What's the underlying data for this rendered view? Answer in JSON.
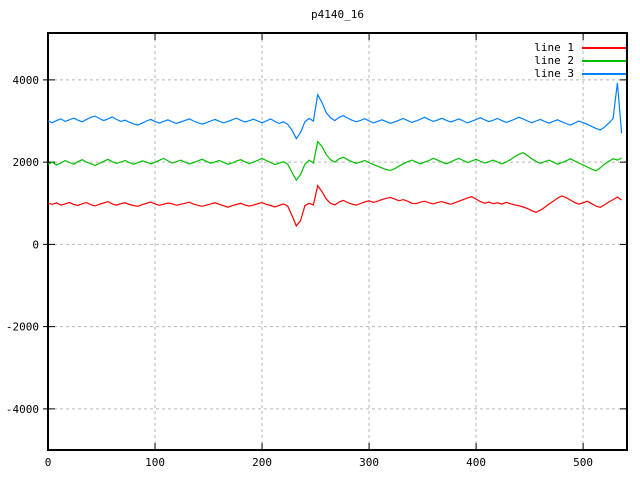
{
  "colors": {
    "background": "#ffffff",
    "border": "#000000",
    "grid": "#b8b8b8",
    "text": "#000000"
  },
  "chart_data": {
    "type": "line",
    "title": "p4140_16",
    "xlabel": "",
    "ylabel": "",
    "xlim": [
      0,
      541
    ],
    "ylim": [
      -5000,
      5140
    ],
    "x_ticks": [
      0,
      100,
      200,
      300,
      400,
      500
    ],
    "y_ticks": [
      -4000,
      -2000,
      0,
      2000,
      4000
    ],
    "grid": true,
    "legend_position": "top-right",
    "series": [
      {
        "name": "line 1",
        "color": "#ff0000",
        "x_start": 0,
        "x_step": 4,
        "values": [
          1000,
          975,
          1010,
          955,
          985,
          1020,
          970,
          945,
          990,
          1015,
          965,
          935,
          975,
          1005,
          1040,
          985,
          955,
          990,
          1010,
          970,
          945,
          925,
          965,
          1000,
          1030,
          985,
          950,
          975,
          1005,
          990,
          950,
          975,
          1000,
          1025,
          980,
          950,
          925,
          955,
          985,
          1010,
          975,
          940,
          905,
          940,
          970,
          1000,
          960,
          930,
          955,
          990,
          1015,
          975,
          945,
          910,
          950,
          985,
          930,
          700,
          450,
          580,
          940,
          1000,
          960,
          1430,
          1280,
          1100,
          1000,
          960,
          1030,
          1070,
          1015,
          980,
          955,
          995,
          1030,
          1060,
          1020,
          1050,
          1090,
          1120,
          1140,
          1100,
          1060,
          1090,
          1050,
          1000,
          990,
          1025,
          1050,
          1010,
          985,
          1015,
          1040,
          1005,
          975,
          1010,
          1050,
          1090,
          1130,
          1160,
          1100,
          1040,
          1000,
          1030,
          990,
          1010,
          980,
          1020,
          990,
          960,
          940,
          910,
          870,
          820,
          780,
          830,
          900,
          980,
          1050,
          1120,
          1180,
          1140,
          1080,
          1020,
          980,
          1010,
          1050,
          990,
          930,
          900,
          960,
          1030,
          1090,
          1150,
          1080
        ]
      },
      {
        "name": "line 2",
        "color": "#00c000",
        "x_start": 0,
        "x_step": 4,
        "values": [
          1950,
          2000,
          1930,
          1980,
          2040,
          1990,
          1950,
          2010,
          2060,
          2000,
          1960,
          1920,
          1970,
          2020,
          2070,
          2010,
          1970,
          2000,
          2040,
          1990,
          1950,
          1985,
          2030,
          2000,
          1960,
          1995,
          2045,
          2090,
          2030,
          1980,
          2010,
          2050,
          2000,
          1955,
          1990,
          2030,
          2070,
          2020,
          1975,
          2005,
          2040,
          1995,
          1950,
          1980,
          2025,
          2060,
          2010,
          1965,
          2000,
          2045,
          2090,
          2040,
          1990,
          1940,
          1975,
          2010,
          1950,
          1750,
          1560,
          1700,
          1950,
          2050,
          1980,
          2500,
          2380,
          2180,
          2060,
          2000,
          2080,
          2120,
          2060,
          2010,
          1970,
          2000,
          2040,
          1990,
          1940,
          1900,
          1860,
          1820,
          1800,
          1840,
          1900,
          1960,
          2010,
          2050,
          2000,
          1960,
          2000,
          2040,
          2090,
          2050,
          2000,
          1960,
          2000,
          2050,
          2090,
          2040,
          1990,
          2030,
          2070,
          2020,
          1980,
          2010,
          2050,
          2000,
          1960,
          2000,
          2060,
          2130,
          2190,
          2230,
          2160,
          2080,
          2020,
          1970,
          2010,
          2050,
          2000,
          1950,
          1990,
          2030,
          2080,
          2030,
          1980,
          1930,
          1880,
          1830,
          1790,
          1860,
          1950,
          2020,
          2080,
          2050,
          2100
        ]
      },
      {
        "name": "line 3",
        "color": "#0080ff",
        "x_start": 0,
        "x_step": 4,
        "values": [
          3000,
          2960,
          3010,
          3050,
          2990,
          3030,
          3070,
          3020,
          2980,
          3040,
          3090,
          3120,
          3060,
          3010,
          3050,
          3100,
          3040,
          2990,
          3020,
          2970,
          2930,
          2900,
          2950,
          3000,
          3040,
          2990,
          2950,
          2990,
          3030,
          2980,
          2940,
          2975,
          3015,
          3050,
          3000,
          2960,
          2925,
          2960,
          3000,
          3040,
          2995,
          2955,
          2990,
          3030,
          3070,
          3020,
          2975,
          3005,
          3045,
          3000,
          2960,
          3000,
          3050,
          2990,
          2940,
          2980,
          2920,
          2780,
          2570,
          2720,
          2980,
          3060,
          3000,
          3640,
          3450,
          3200,
          3080,
          3010,
          3090,
          3130,
          3070,
          3020,
          2980,
          3015,
          3055,
          3000,
          2955,
          2990,
          3030,
          2985,
          2945,
          2980,
          3020,
          3060,
          3010,
          2965,
          3000,
          3045,
          3090,
          3040,
          2990,
          3025,
          3065,
          3020,
          2975,
          3010,
          3050,
          3000,
          2955,
          2995,
          3035,
          3080,
          3030,
          2985,
          3020,
          3060,
          3010,
          2965,
          3000,
          3045,
          3090,
          3050,
          3000,
          2960,
          3000,
          3040,
          2990,
          2950,
          2990,
          3030,
          2980,
          2940,
          2900,
          2950,
          3000,
          2960,
          2920,
          2870,
          2820,
          2780,
          2850,
          2950,
          3060,
          3930,
          2700
        ]
      }
    ]
  }
}
